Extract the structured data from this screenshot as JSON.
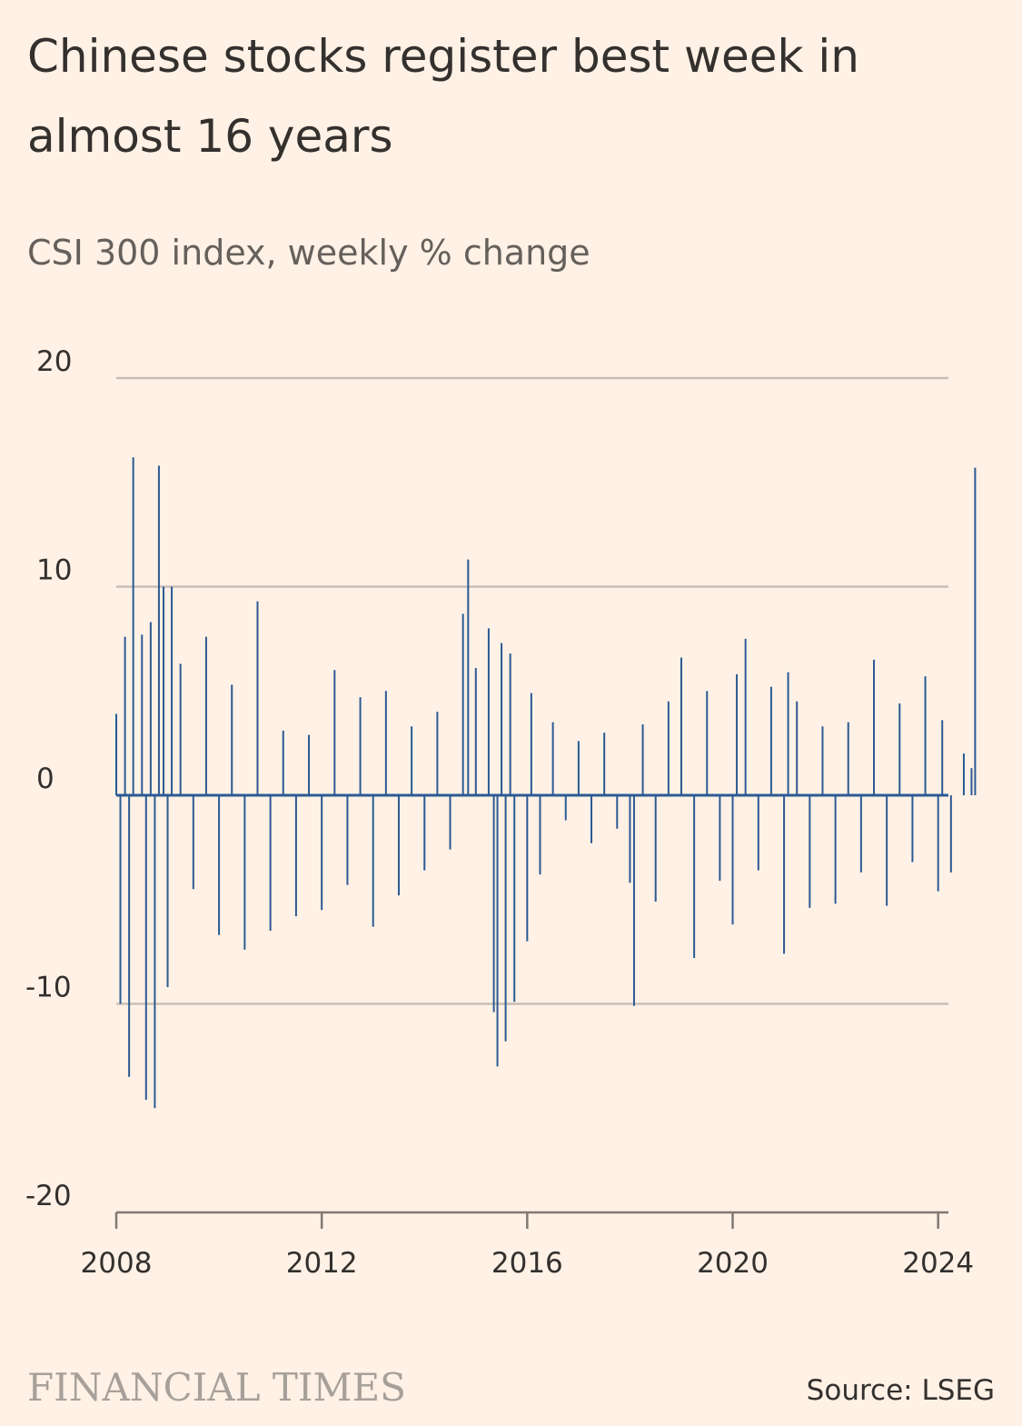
{
  "header": {
    "title": "Chinese stocks register best week in almost 16 years",
    "subtitle": "CSI 300 index, weekly % change"
  },
  "footer": {
    "brand": "FINANCIAL TIMES",
    "source": "Source: LSEG"
  },
  "colors": {
    "background": "#fff1e5",
    "bar": "#2b5a94",
    "grid": "#c9bfb6",
    "axis": "#807973",
    "text": "#33302e"
  },
  "chart_data": {
    "type": "bar",
    "title": "Chinese stocks register best week in almost 16 years",
    "subtitle": "CSI 300 index, weekly % change",
    "xlabel": "",
    "ylabel": "",
    "ylim": [
      -20,
      20
    ],
    "yticks": [
      20,
      10,
      0,
      -10,
      -20
    ],
    "xlim": [
      2008.0,
      2024.75
    ],
    "xticks": [
      2008,
      2012,
      2016,
      2020,
      2024
    ],
    "grid": true,
    "legend": "none",
    "x": [
      2008.0,
      2008.08,
      2008.17,
      2008.25,
      2008.33,
      2008.5,
      2008.58,
      2008.67,
      2008.75,
      2008.83,
      2008.92,
      2009.0,
      2009.08,
      2009.25,
      2009.5,
      2009.75,
      2010.0,
      2010.25,
      2010.5,
      2010.75,
      2011.0,
      2011.25,
      2011.5,
      2011.75,
      2012.0,
      2012.25,
      2012.5,
      2012.75,
      2013.0,
      2013.25,
      2013.5,
      2013.75,
      2014.0,
      2014.25,
      2014.5,
      2014.75,
      2014.85,
      2015.0,
      2015.25,
      2015.35,
      2015.42,
      2015.5,
      2015.58,
      2015.67,
      2015.75,
      2016.0,
      2016.08,
      2016.25,
      2016.5,
      2016.75,
      2017.0,
      2017.25,
      2017.5,
      2017.75,
      2018.0,
      2018.08,
      2018.25,
      2018.5,
      2018.75,
      2019.0,
      2019.25,
      2019.5,
      2019.75,
      2020.0,
      2020.08,
      2020.25,
      2020.5,
      2020.75,
      2021.0,
      2021.08,
      2021.25,
      2021.5,
      2021.75,
      2022.0,
      2022.25,
      2022.5,
      2022.75,
      2023.0,
      2023.25,
      2023.5,
      2023.75,
      2024.0,
      2024.08,
      2024.25,
      2024.5,
      2024.65,
      2024.72
    ],
    "values": [
      3.9,
      -10.0,
      7.6,
      -13.5,
      16.2,
      7.7,
      -14.6,
      8.3,
      -15.0,
      15.8,
      10.0,
      -9.2,
      10.0,
      6.3,
      -4.5,
      7.6,
      -6.7,
      5.3,
      -7.4,
      9.3,
      -6.5,
      3.1,
      -5.8,
      2.9,
      -5.5,
      6.0,
      -4.3,
      4.7,
      -6.3,
      5.0,
      -4.8,
      3.3,
      -3.6,
      4.0,
      -2.6,
      8.7,
      11.3,
      6.1,
      8.0,
      -10.4,
      -13.0,
      7.3,
      -11.8,
      6.8,
      -9.9,
      -7.0,
      4.9,
      -3.8,
      3.5,
      -1.2,
      2.6,
      -2.3,
      3.0,
      -1.6,
      -4.2,
      -10.1,
      3.4,
      -5.1,
      4.5,
      6.6,
      -7.8,
      5.0,
      -4.1,
      -6.2,
      5.8,
      7.5,
      -3.6,
      5.2,
      -7.6,
      5.9,
      4.5,
      -5.4,
      3.3,
      -5.2,
      3.5,
      -3.7,
      6.5,
      -5.3,
      4.4,
      -3.2,
      5.7,
      -4.6,
      3.6,
      -3.7,
      2.0,
      1.3,
      15.7
    ]
  }
}
